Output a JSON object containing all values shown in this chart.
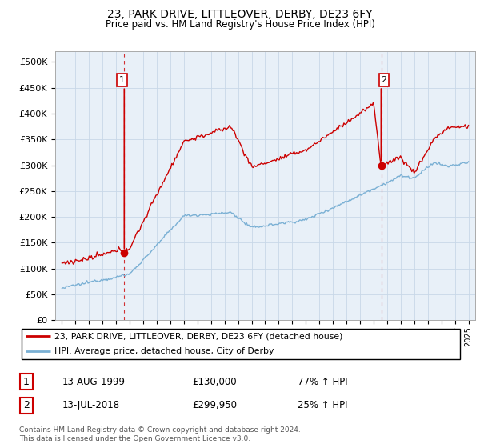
{
  "title": "23, PARK DRIVE, LITTLEOVER, DERBY, DE23 6FY",
  "subtitle": "Price paid vs. HM Land Registry's House Price Index (HPI)",
  "ytick_labels": [
    "£0",
    "£50K",
    "£100K",
    "£150K",
    "£200K",
    "£250K",
    "£300K",
    "£350K",
    "£400K",
    "£450K",
    "£500K"
  ],
  "red_color": "#cc0000",
  "blue_color": "#7ab0d4",
  "sale1_price": 130000,
  "sale1_x": 1999.617,
  "sale2_price": 299950,
  "sale2_x": 2018.533,
  "legend_line1": "23, PARK DRIVE, LITTLEOVER, DERBY, DE23 6FY (detached house)",
  "legend_line2": "HPI: Average price, detached house, City of Derby",
  "table_row1_date": "13-AUG-1999",
  "table_row1_price": "£130,000",
  "table_row1_hpi": "77% ↑ HPI",
  "table_row2_date": "13-JUL-2018",
  "table_row2_price": "£299,950",
  "table_row2_hpi": "25% ↑ HPI",
  "footer": "Contains HM Land Registry data © Crown copyright and database right 2024.\nThis data is licensed under the Open Government Licence v3.0.",
  "background_color": "#ffffff",
  "chart_bg_color": "#e8f0f8",
  "grid_color": "#c8d8e8"
}
